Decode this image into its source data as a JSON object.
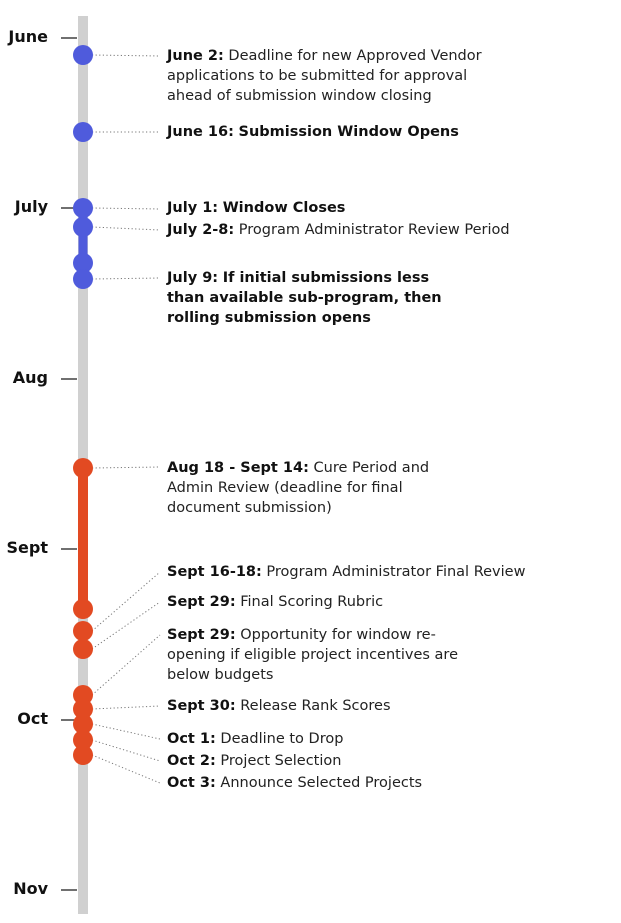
{
  "months": [
    {
      "label": "June"
    },
    {
      "label": "July"
    },
    {
      "label": "Aug"
    },
    {
      "label": "Sept"
    },
    {
      "label": "Oct"
    },
    {
      "label": "Nov"
    }
  ],
  "colors": {
    "axis": "#d0d0d0",
    "phase1": "#4f5bdc",
    "phase2": "#e24a22",
    "connector": "#777777"
  },
  "events": [
    {
      "date": "June 2:",
      "desc": "Deadline for new Approved Vendor applications to be submitted for approval ahead of submission window closing",
      "bold": false
    },
    {
      "date": "June 16:",
      "desc": "Submission Window Opens",
      "bold": true
    },
    {
      "date": "July 1:",
      "desc": "Window Closes",
      "bold": true
    },
    {
      "date": "July 2-8:",
      "desc": "Program Administrator Review Period",
      "bold": false
    },
    {
      "date": "July 9:",
      "desc": "If initial submissions less than available sub-program, then rolling submission opens",
      "bold": true
    },
    {
      "date": "Aug 18 - Sept 14:",
      "desc": "Cure Period and Admin Review (deadline for final document submission)",
      "bold": false
    },
    {
      "date": "Sept 16-18:",
      "desc": "Program Administrator Final Review",
      "bold": false
    },
    {
      "date": "Sept 29:",
      "desc": "Final Scoring Rubric",
      "bold": false
    },
    {
      "date": "Sept 29:",
      "desc": "Opportunity for window re-opening if eligible project incentives are below budgets",
      "bold": false
    },
    {
      "date": "Sept 30:",
      "desc": "Release Rank Scores",
      "bold": false
    },
    {
      "date": "Oct 1:",
      "desc": "Deadline to Drop",
      "bold": false
    },
    {
      "date": "Oct 2:",
      "desc": "Project Selection",
      "bold": false
    },
    {
      "date": "Oct 3:",
      "desc": "Announce Selected Projects",
      "bold": false
    }
  ]
}
